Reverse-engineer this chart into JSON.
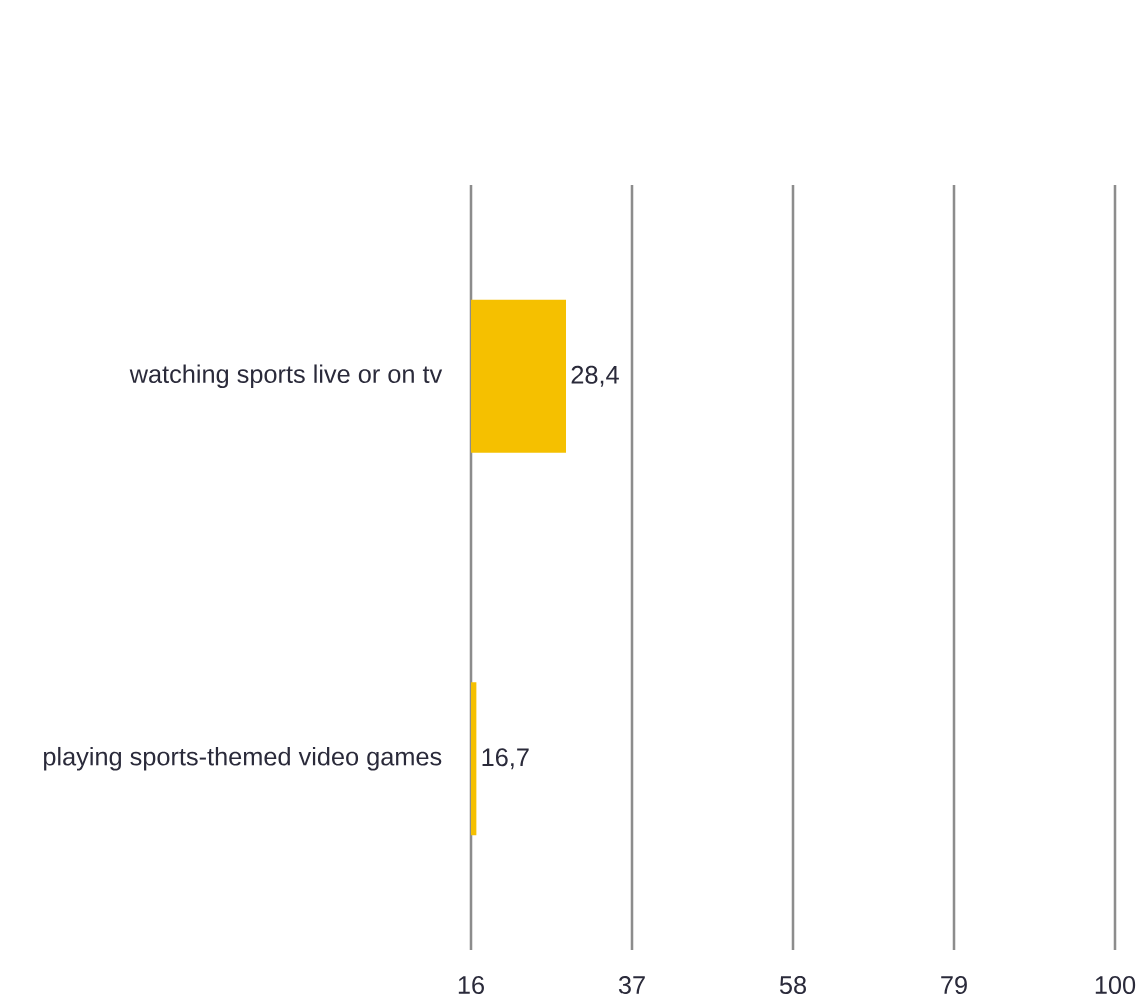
{
  "chart_data": {
    "type": "bar",
    "orientation": "horizontal",
    "categories": [
      "watching sports live or on tv",
      "playing sports-themed video games"
    ],
    "values": [
      28.4,
      16.7
    ],
    "value_labels": [
      "28,4",
      "16,7"
    ],
    "color": "#f5c000",
    "xlim": [
      16,
      100
    ],
    "xticks": [
      16,
      37,
      58,
      79,
      100
    ],
    "grid": "x"
  }
}
